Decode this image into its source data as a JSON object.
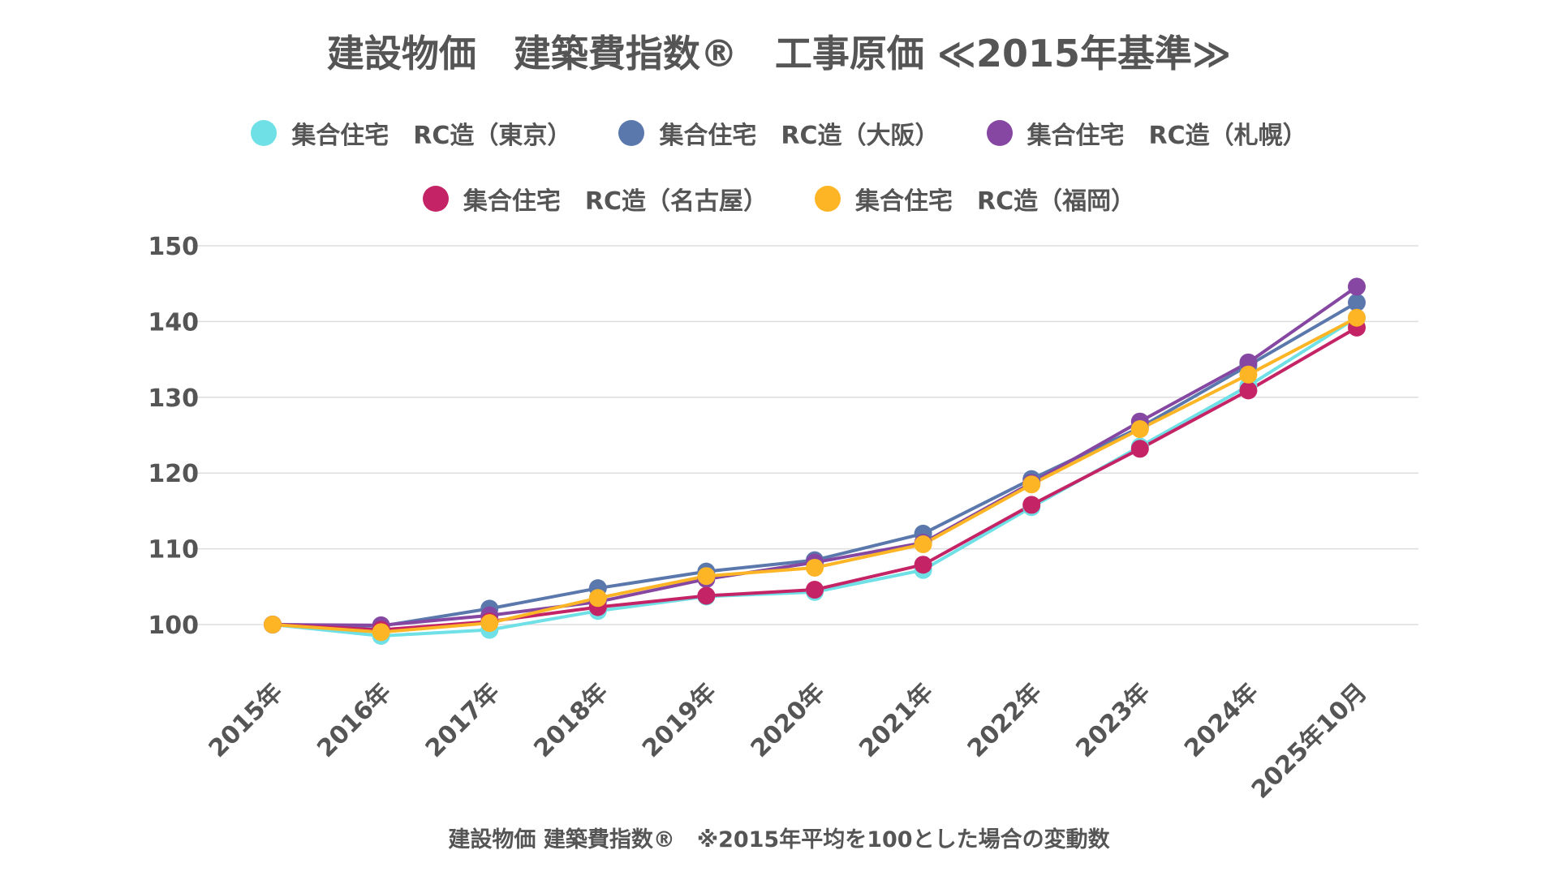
{
  "chart_data": {
    "type": "line",
    "title": "建設物価　建築費指数®　工事原価 ≪2015年基準≫",
    "categories": [
      "2015年",
      "2016年",
      "2017年",
      "2018年",
      "2019年",
      "2020年",
      "2021年",
      "2022年",
      "2023年",
      "2024年",
      "2025年10月"
    ],
    "ylim": [
      100,
      150
    ],
    "yticks": [
      "100",
      "110",
      "120",
      "130",
      "140",
      "150"
    ],
    "grid": true,
    "legend_position": "top",
    "footnote": "建設物価 建築費指数®　※2015年平均を100とした場合の変動数",
    "series": [
      {
        "name": "集合住宅　RC造（東京）",
        "color": "#6ee0e6",
        "values": [
          100,
          98.5,
          99.3,
          101.8,
          103.7,
          104.3,
          107.2,
          115.5,
          123.5,
          131.5,
          140.5
        ]
      },
      {
        "name": "集合住宅　RC造（大阪）",
        "color": "#5b78ad",
        "values": [
          100,
          99.8,
          102.1,
          104.8,
          107.0,
          108.5,
          112.0,
          119.2,
          126.0,
          134.2,
          142.5
        ]
      },
      {
        "name": "集合住宅　RC造（札幌）",
        "color": "#8547a1",
        "values": [
          100,
          99.9,
          101.2,
          103.0,
          106.0,
          108.2,
          110.8,
          118.7,
          126.8,
          134.6,
          144.6
        ]
      },
      {
        "name": "集合住宅　RC造（名古屋）",
        "color": "#c42365",
        "values": [
          100,
          99.3,
          100.4,
          102.3,
          103.8,
          104.6,
          107.9,
          115.8,
          123.2,
          130.9,
          139.2
        ]
      },
      {
        "name": "集合住宅　RC造（福岡）",
        "color": "#fdb525",
        "values": [
          100,
          99.0,
          100.2,
          103.5,
          106.4,
          107.5,
          110.6,
          118.5,
          125.8,
          133.0,
          140.5
        ]
      }
    ]
  }
}
